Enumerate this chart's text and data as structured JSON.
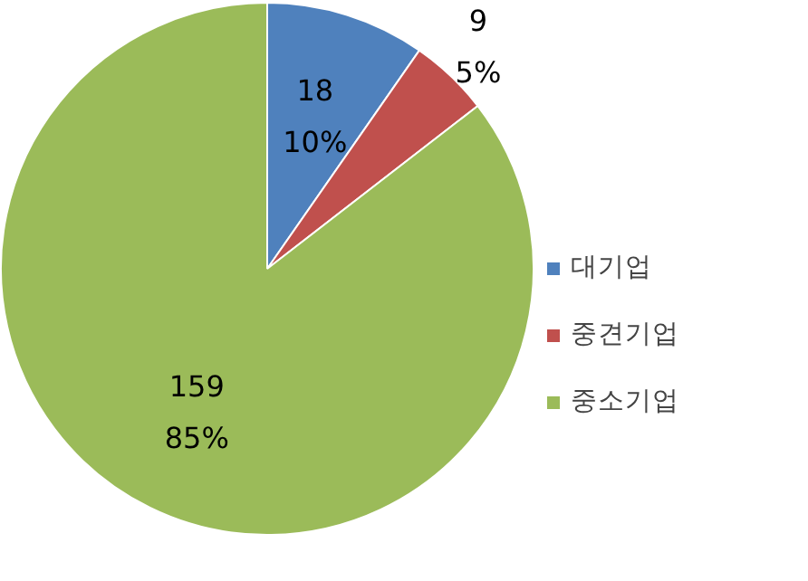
{
  "chart_data": {
    "type": "pie",
    "categories": [
      "대기업",
      "중견기업",
      "중소기업"
    ],
    "values": [
      18,
      9,
      159
    ],
    "colors": [
      "#4f81bd",
      "#c0504d",
      "#9bbb59"
    ],
    "value_labels": [
      "18\n10%",
      "9\n5%",
      "159\n85%"
    ],
    "legend": "right"
  }
}
